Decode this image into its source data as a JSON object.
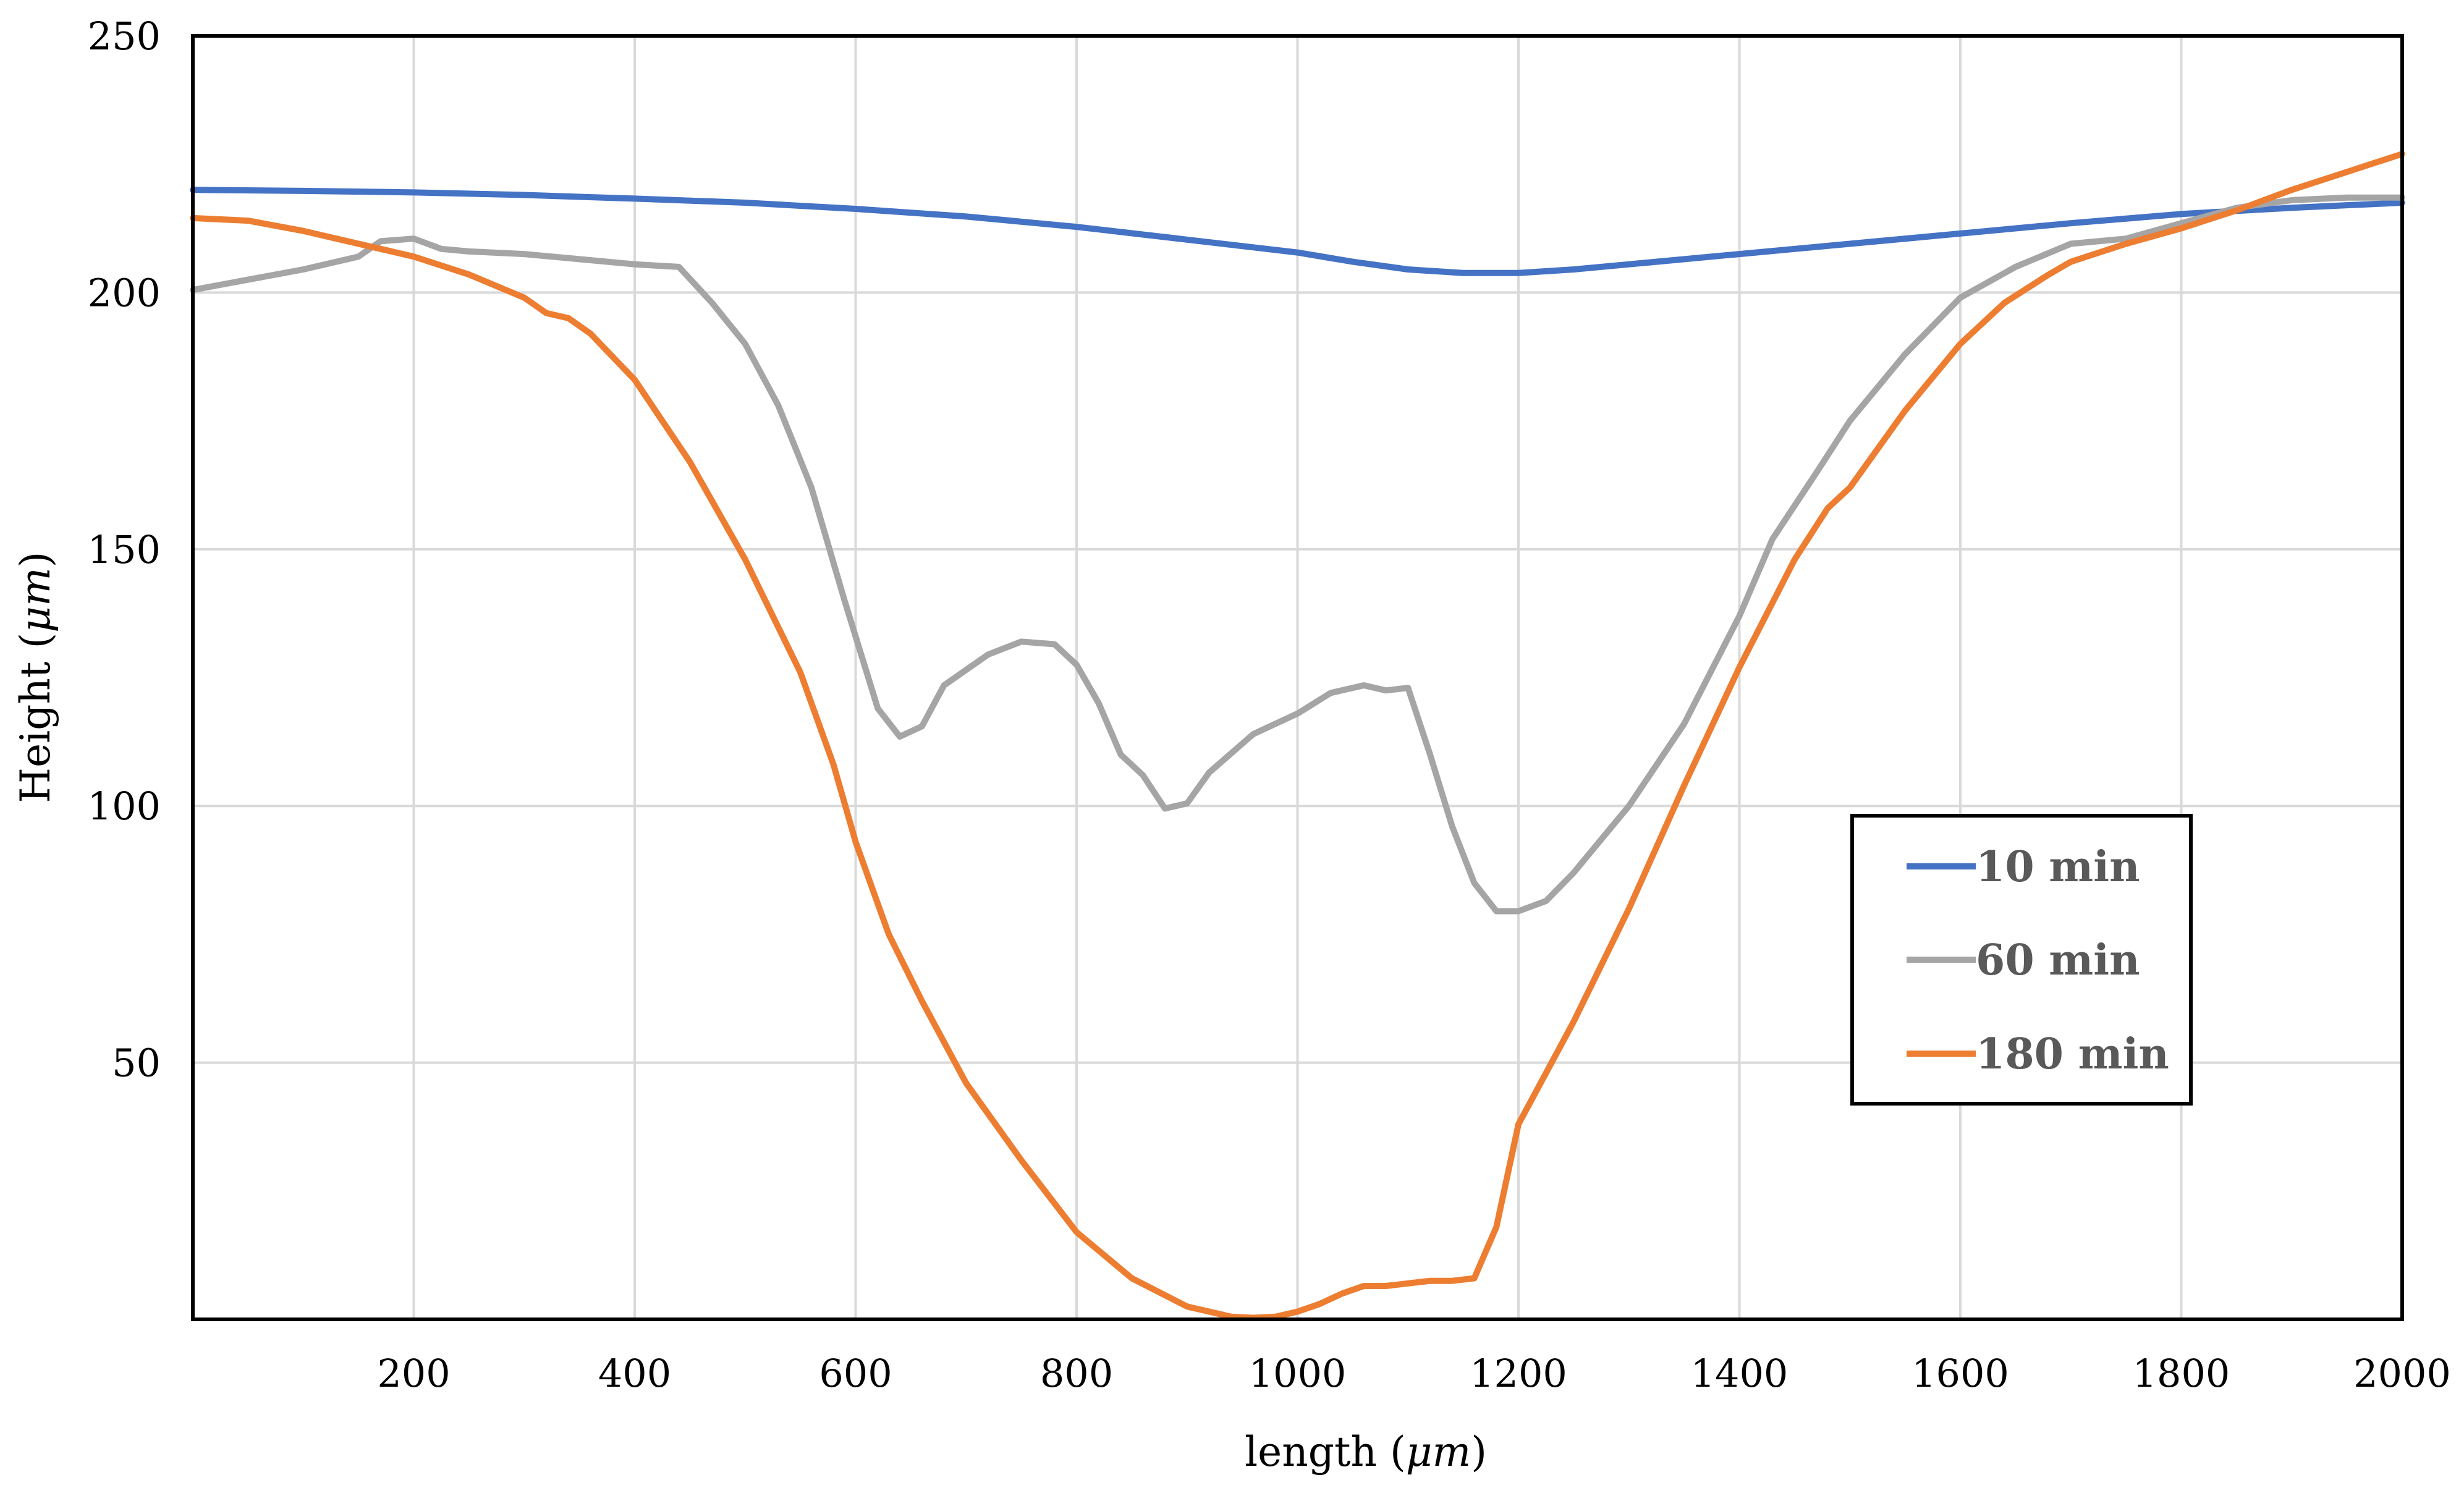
{
  "chart_data": {
    "type": "line",
    "xlabel": "length (",
    "xlabel_unit": "μm",
    "xlabel_close": ")",
    "ylabel": "Height (",
    "ylabel_unit": "μm",
    "ylabel_close": ")",
    "xlim": [
      0,
      2000
    ],
    "ylim": [
      0,
      250
    ],
    "x_ticks": [
      200,
      400,
      600,
      800,
      1000,
      1200,
      1400,
      1600,
      1800,
      2000
    ],
    "y_ticks": [
      50,
      100,
      150,
      200,
      250
    ],
    "grid": true,
    "legend_position": "right",
    "series": [
      {
        "name": "10 min",
        "color": "#4472C4",
        "x": [
          0,
          100,
          200,
          300,
          400,
          500,
          600,
          700,
          800,
          900,
          1000,
          1050,
          1100,
          1150,
          1200,
          1250,
          1300,
          1400,
          1500,
          1600,
          1700,
          1800,
          1900,
          2000
        ],
        "y": [
          220,
          219.8,
          219.5,
          219,
          218.3,
          217.5,
          216.3,
          214.8,
          212.8,
          210.3,
          207.8,
          206,
          204.5,
          203.8,
          203.8,
          204.5,
          205.5,
          207.5,
          209.5,
          211.5,
          213.5,
          215.3,
          216.5,
          217.5
        ]
      },
      {
        "name": "60 min",
        "color": "#A5A5A5",
        "x": [
          0,
          50,
          100,
          150,
          170,
          200,
          225,
          250,
          300,
          350,
          400,
          440,
          470,
          500,
          530,
          560,
          590,
          620,
          640,
          660,
          680,
          700,
          720,
          750,
          780,
          800,
          820,
          840,
          860,
          880,
          900,
          920,
          960,
          1000,
          1030,
          1060,
          1080,
          1100,
          1120,
          1140,
          1160,
          1180,
          1200,
          1225,
          1250,
          1300,
          1350,
          1400,
          1430,
          1470,
          1500,
          1550,
          1600,
          1650,
          1700,
          1750,
          1800,
          1850,
          1900,
          1950,
          2000
        ],
        "y": [
          200.5,
          202.5,
          204.5,
          207,
          210,
          210.5,
          208.5,
          208,
          207.5,
          206.5,
          205.5,
          205,
          198,
          190,
          178,
          162,
          140,
          119,
          113.5,
          115.5,
          123.5,
          126.5,
          129.5,
          132,
          131.5,
          127.5,
          120,
          110,
          106,
          99.5,
          100.5,
          106.5,
          114,
          118,
          122,
          123.5,
          122.5,
          123,
          110,
          96,
          85,
          79.5,
          79.5,
          81.5,
          87,
          100,
          116,
          137,
          152,
          165,
          175,
          188,
          199,
          205,
          209.5,
          210.5,
          213.5,
          216.5,
          218,
          218.5,
          218.5
        ]
      },
      {
        "name": "180 min",
        "color": "#ED7D31",
        "x": [
          0,
          50,
          100,
          150,
          200,
          250,
          300,
          320,
          340,
          360,
          400,
          450,
          500,
          550,
          580,
          600,
          630,
          660,
          700,
          750,
          800,
          850,
          900,
          940,
          960,
          980,
          1000,
          1020,
          1040,
          1060,
          1080,
          1100,
          1120,
          1140,
          1160,
          1180,
          1200,
          1250,
          1300,
          1350,
          1400,
          1450,
          1480,
          1500,
          1550,
          1600,
          1640,
          1680,
          1700,
          1750,
          1800,
          1850,
          1900,
          1950,
          2000
        ],
        "y": [
          214.5,
          214,
          212,
          209.5,
          207,
          203.5,
          199,
          196,
          195,
          192,
          183,
          167,
          148,
          126,
          108,
          93,
          75,
          62,
          46,
          31,
          17,
          8,
          2.5,
          0.5,
          0.3,
          0.5,
          1.5,
          3,
          5,
          6.5,
          6.5,
          7,
          7.5,
          7.5,
          8,
          18,
          38,
          58,
          80,
          104,
          127,
          148,
          158,
          162,
          177,
          190,
          198,
          203.5,
          206,
          209.5,
          212.5,
          216,
          220,
          223.5,
          227
        ]
      }
    ]
  }
}
